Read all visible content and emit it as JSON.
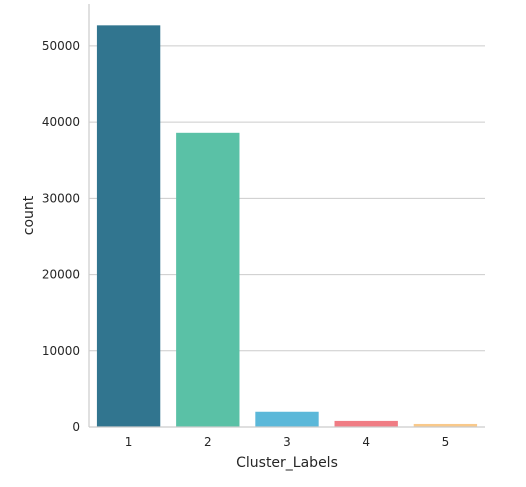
{
  "chart_data": {
    "type": "bar",
    "categories": [
      "1",
      "2",
      "3",
      "4",
      "5"
    ],
    "values": [
      52700,
      38600,
      2000,
      800,
      400
    ],
    "colors": [
      "#31758f",
      "#5ac1a6",
      "#5bb8d9",
      "#f07c84",
      "#f9c98a"
    ],
    "xlabel": "Cluster_Labels",
    "ylabel": "count",
    "ylim": [
      0,
      55500
    ],
    "yticks": [
      0,
      10000,
      20000,
      30000,
      40000,
      50000
    ],
    "yticklabels": [
      "0",
      "10000",
      "20000",
      "30000",
      "40000",
      "50000"
    ],
    "grid": "horizontal",
    "legend": "none"
  }
}
